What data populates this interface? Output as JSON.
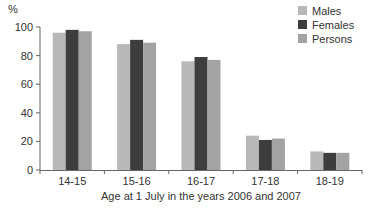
{
  "chart_data": {
    "type": "bar",
    "y_label": "%",
    "x_label": "Age at 1 July in the years 2006 and 2007",
    "categories": [
      "14-15",
      "15-16",
      "16-17",
      "17-18",
      "18-19"
    ],
    "series": [
      {
        "name": "Males",
        "color": "#b8b8b8",
        "values": [
          96,
          88,
          76,
          24,
          13
        ]
      },
      {
        "name": "Females",
        "color": "#3d3d3d",
        "values": [
          98,
          91,
          79,
          21,
          12
        ]
      },
      {
        "name": "Persons",
        "color": "#a3a3a3",
        "values": [
          97,
          89,
          77,
          22,
          12
        ]
      }
    ],
    "ylim": [
      0,
      100
    ],
    "yticks": [
      0,
      20,
      40,
      60,
      80,
      100
    ],
    "grid": false,
    "legend": "upper right"
  }
}
